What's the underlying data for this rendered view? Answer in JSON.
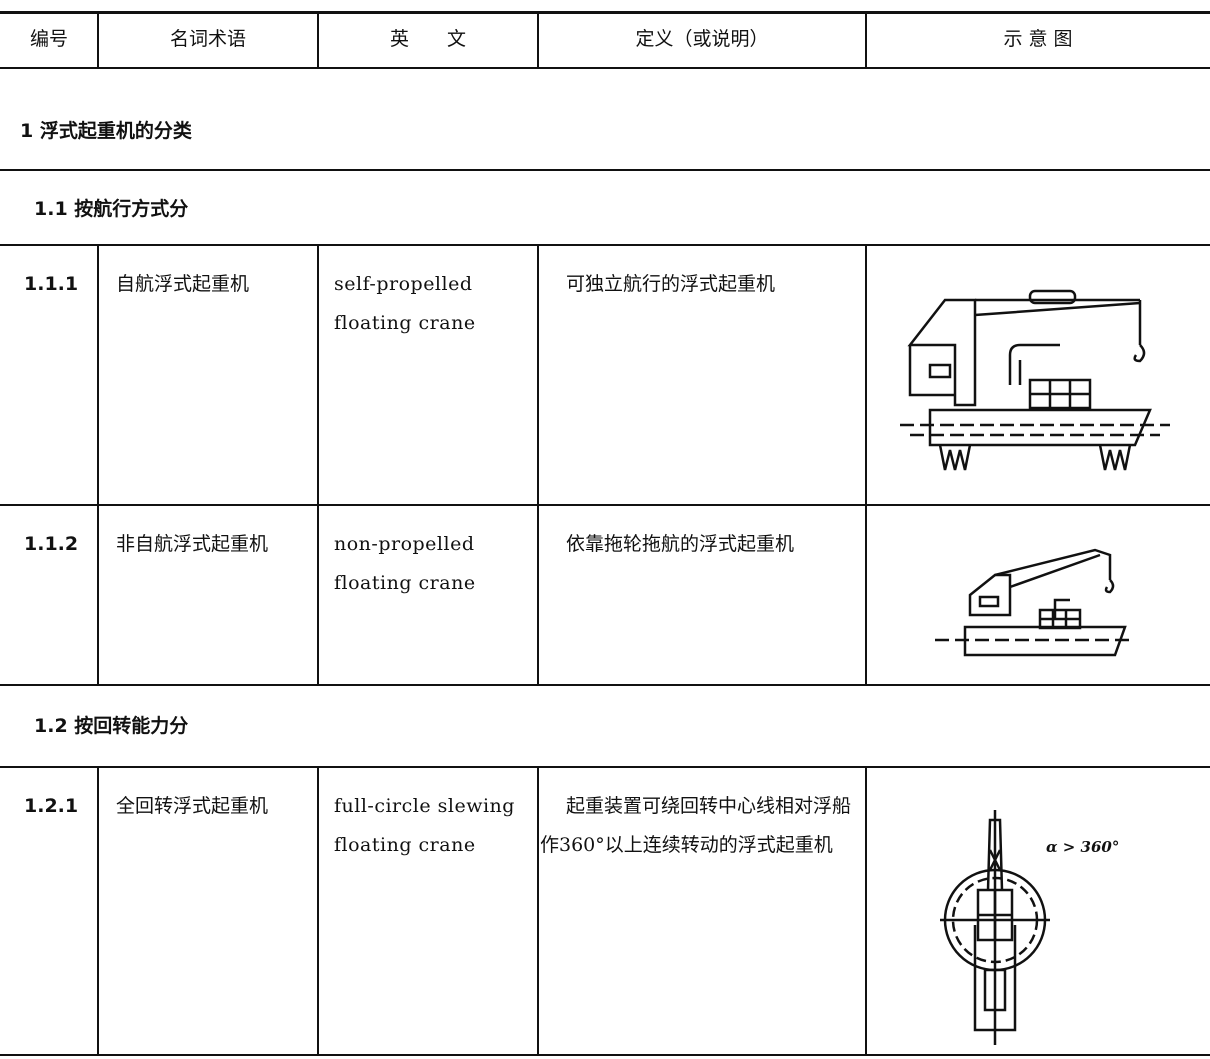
{
  "table": {
    "header": [
      "编号",
      "名词术语",
      "英　　文",
      "定义（或说明）",
      "示 意 图"
    ],
    "section": "1 浮式起重机的分类",
    "subsections": [
      {
        "heading": "1.1 按航行方式分",
        "rows": [
          [
            "1.1.1",
            "自航浮式起重机",
            "self-propelled floating crane",
            "可独立航行的浮式起重机"
          ],
          [
            "1.1.2",
            "非自航浮式起重机",
            "non-propelled floating crane",
            "依靠拖轮拖航的浮式起重机"
          ]
        ]
      },
      {
        "heading": "1.2 按回转能力分",
        "rows": [
          [
            "1.2.1",
            "全回转浮式起重机",
            "full-circle slewing floating crane",
            "起重装置可绕回转中心线相对浮船作360°以上连续转动的浮式起重机"
          ]
        ],
        "figure_label": "α > 360°"
      }
    ]
  }
}
